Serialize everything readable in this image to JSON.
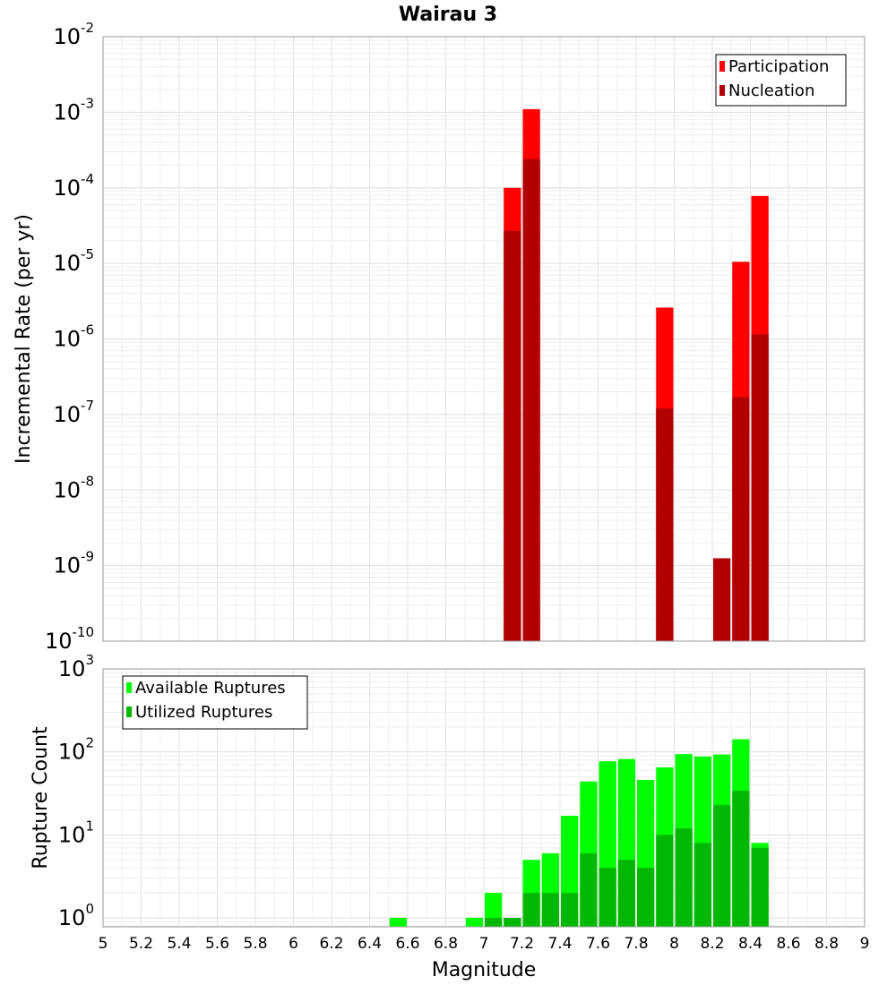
{
  "chart_data": [
    {
      "type": "bar",
      "title": "Wairau 3",
      "xlabel": "",
      "ylabel": "Incremental Rate (per yr)",
      "y_scale": "log",
      "ylim": [
        1e-10,
        0.01
      ],
      "xlim": [
        5,
        9
      ],
      "bar_width": 0.1,
      "grid": true,
      "legend_position": "top-right",
      "y_ticks": [
        {
          "base": "10",
          "exp": "-10"
        },
        {
          "base": "10",
          "exp": "-9"
        },
        {
          "base": "10",
          "exp": "-8"
        },
        {
          "base": "10",
          "exp": "-7"
        },
        {
          "base": "10",
          "exp": "-6"
        },
        {
          "base": "10",
          "exp": "-5"
        },
        {
          "base": "10",
          "exp": "-4"
        },
        {
          "base": "10",
          "exp": "-3"
        },
        {
          "base": "10",
          "exp": "-2"
        }
      ],
      "series": [
        {
          "name": "Participation",
          "color": "#ff0000",
          "x": [
            7.15,
            7.25,
            7.95,
            8.35,
            8.45
          ],
          "values": [
            0.0001,
            0.0011,
            2.6e-06,
            1.05e-05,
            7.8e-05
          ]
        },
        {
          "name": "Nucleation",
          "color": "#b20000",
          "x": [
            7.15,
            7.25,
            7.95,
            8.25,
            8.35,
            8.45
          ],
          "values": [
            2.7e-05,
            0.00024,
            1.2e-07,
            1.25e-09,
            1.7e-07,
            1.15e-06
          ]
        }
      ]
    },
    {
      "type": "bar",
      "title": "",
      "xlabel": "Magnitude",
      "ylabel": "Rupture Count",
      "y_scale": "log",
      "ylim": [
        0.78,
        1000
      ],
      "xlim": [
        5,
        9
      ],
      "bar_width": 0.1,
      "grid": true,
      "legend_position": "top-left",
      "x_ticks": [
        "5",
        "5.2",
        "5.4",
        "5.6",
        "5.8",
        "6",
        "6.2",
        "6.4",
        "6.6",
        "6.8",
        "7",
        "7.2",
        "7.4",
        "7.6",
        "7.8",
        "8",
        "8.2",
        "8.4",
        "8.6",
        "8.8",
        "9"
      ],
      "y_ticks": [
        {
          "base": "10",
          "exp": "0"
        },
        {
          "base": "10",
          "exp": "1"
        },
        {
          "base": "10",
          "exp": "2"
        },
        {
          "base": "10",
          "exp": "3"
        }
      ],
      "series": [
        {
          "name": "Available Ruptures",
          "color": "#00ff00",
          "x": [
            6.55,
            6.95,
            7.05,
            7.15,
            7.25,
            7.35,
            7.45,
            7.55,
            7.65,
            7.75,
            7.85,
            7.95,
            8.05,
            8.15,
            8.25,
            8.35,
            8.45
          ],
          "values": [
            1,
            1,
            2,
            1,
            5,
            6,
            17,
            44,
            77,
            82,
            46,
            65,
            94,
            88,
            93,
            142,
            8
          ]
        },
        {
          "name": "Utilized Ruptures",
          "color": "#00b800",
          "x": [
            7.05,
            7.15,
            7.25,
            7.35,
            7.45,
            7.55,
            7.65,
            7.75,
            7.85,
            7.95,
            8.05,
            8.15,
            8.25,
            8.35,
            8.45
          ],
          "values": [
            1,
            1,
            2,
            2,
            2,
            6,
            4,
            5,
            4,
            10,
            12,
            8,
            23,
            34,
            7
          ]
        }
      ]
    }
  ]
}
